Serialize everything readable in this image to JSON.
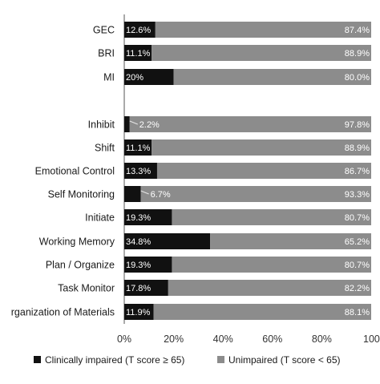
{
  "chart_data": {
    "type": "bar",
    "orientation": "horizontal",
    "stacked": true,
    "categories": [
      "GEC",
      "BRI",
      "MI",
      "Inhibit",
      "Shift",
      "Emotional Control",
      "Self Monitoring",
      "Initiate",
      "Working Memory",
      "Plan / Organize",
      "Task Monitor",
      "Organization of Materials"
    ],
    "category_labels": [
      "GEC",
      "BRI",
      "MI",
      "Inhibit",
      "Shift",
      "Emotional Control",
      "Self Monitoring",
      "Initiate",
      "Working Memory",
      "Plan / Organize",
      "Task Monitor",
      "rganization of Materials"
    ],
    "series": [
      {
        "name": "Clinically impaired (T score ≥ 65)",
        "color": "#111111",
        "values": [
          12.6,
          11.1,
          20,
          2.2,
          11.1,
          13.3,
          6.7,
          19.3,
          34.8,
          19.3,
          17.8,
          11.9
        ],
        "labels": [
          "12.6%",
          "11.1%",
          "20%",
          "2.2%",
          "11.1%",
          "13.3%",
          "6.7%",
          "19.3%",
          "34.8%",
          "19.3%",
          "17.8%",
          "11.9%"
        ]
      },
      {
        "name": "Unimpaired (T score < 65)",
        "color": "#8c8c8c",
        "values": [
          87.4,
          88.9,
          80.0,
          97.8,
          88.9,
          86.7,
          93.3,
          80.7,
          65.2,
          80.7,
          82.2,
          88.1
        ],
        "labels": [
          "87.4%",
          "88.9%",
          "80.0%",
          "97.8%",
          "88.9%",
          "86.7%",
          "93.3%",
          "80.7%",
          "65.2%",
          "80.7%",
          "82.2%",
          "88.1%"
        ]
      }
    ],
    "xlim": [
      0,
      100
    ],
    "x_ticks": [
      "0%",
      "20%",
      "40%",
      "60%",
      "80%",
      "100"
    ],
    "grid": false,
    "legend_position": "bottom",
    "title": "",
    "xlabel": "",
    "ylabel": ""
  }
}
